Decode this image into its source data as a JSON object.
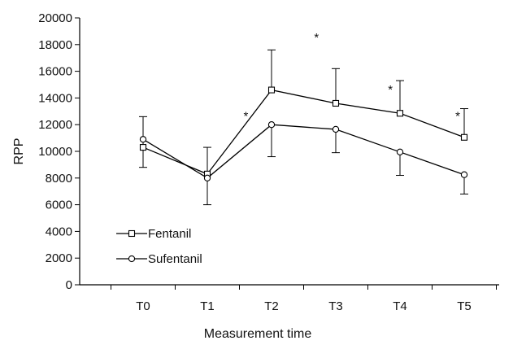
{
  "chart_data": {
    "type": "line",
    "categories": [
      "T0",
      "T1",
      "T2",
      "T3",
      "T4",
      "T5"
    ],
    "xlabel": "Measurement time",
    "ylabel": "RPP",
    "ylim": [
      0,
      20000
    ],
    "yticks": [
      0,
      2000,
      4000,
      6000,
      8000,
      10000,
      12000,
      14000,
      16000,
      18000,
      20000
    ],
    "grid": false,
    "legend_position": "lower-left",
    "series": [
      {
        "name": "Fentanil",
        "marker": "square",
        "values": [
          10300,
          8300,
          14600,
          13600,
          12850,
          11050
        ],
        "error_upper": [
          12600,
          10300,
          17600,
          16200,
          15300,
          13200
        ],
        "error_lower": [
          8800,
          null,
          null,
          null,
          null,
          null
        ]
      },
      {
        "name": "Sufentanil",
        "marker": "circle",
        "values": [
          10900,
          8000,
          12000,
          11650,
          9950,
          8250
        ],
        "error_upper": [
          null,
          null,
          null,
          null,
          null,
          null
        ],
        "error_lower": [
          null,
          6000,
          9600,
          9900,
          8200,
          6800
        ]
      }
    ],
    "annotations": [
      {
        "text": "*",
        "x": 1.6,
        "y": 12700
      },
      {
        "text": "*",
        "x": 2.7,
        "y": 18600
      },
      {
        "text": "*",
        "x": 3.85,
        "y": 14700
      },
      {
        "text": "*",
        "x": 4.9,
        "y": 12700
      }
    ]
  }
}
